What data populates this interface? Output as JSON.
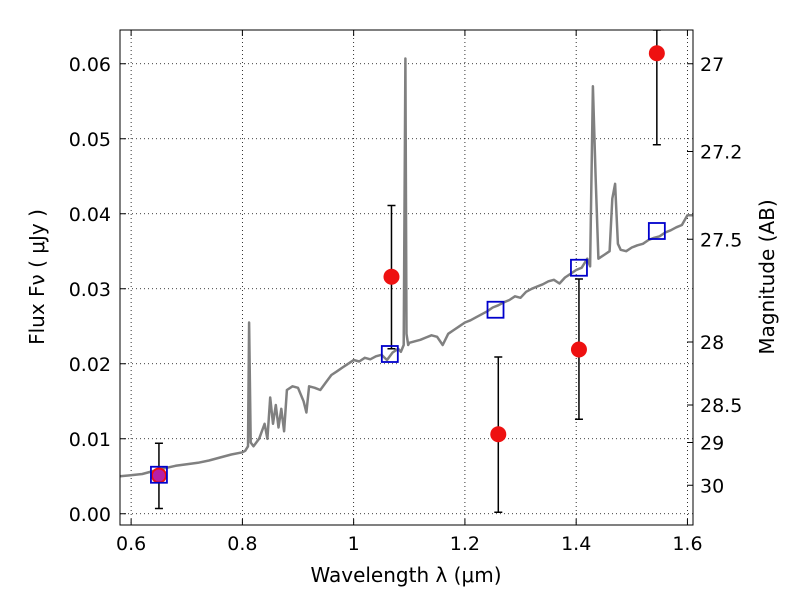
{
  "chart_data": {
    "type": "scatter",
    "title": "",
    "xlabel": "Wavelength  λ (μm)",
    "ylabel": "Flux  Fν  ( μJy )",
    "y2label": "Magnitude (AB)",
    "xlim": [
      0.58,
      1.61
    ],
    "ylim": [
      -0.0015,
      0.0645
    ],
    "grid": true,
    "x_ticks": [
      0.6,
      0.8,
      1.0,
      1.2,
      1.4,
      1.6
    ],
    "x_tick_labels": [
      "0.6",
      "0.8",
      "1",
      "1.2",
      "1.4",
      "1.6"
    ],
    "y_ticks": [
      0.0,
      0.01,
      0.02,
      0.03,
      0.04,
      0.05,
      0.06
    ],
    "y_tick_labels": [
      "0.00",
      "0.01",
      "0.02",
      "0.03",
      "0.04",
      "0.05",
      "0.06"
    ],
    "y2_ticks": [
      {
        "label": "27",
        "flux": 0.06
      },
      {
        "label": "27.2",
        "flux": 0.0483
      },
      {
        "label": "27.5",
        "flux": 0.0366
      },
      {
        "label": "28",
        "flux": 0.0229
      },
      {
        "label": "28.5",
        "flux": 0.0145
      },
      {
        "label": "29",
        "flux": 0.0095
      },
      {
        "label": "30",
        "flux": 0.0038
      }
    ],
    "model_sed": {
      "color": "#808080",
      "x": [
        0.58,
        0.62,
        0.65,
        0.68,
        0.7,
        0.72,
        0.74,
        0.76,
        0.78,
        0.8,
        0.805,
        0.81,
        0.812,
        0.815,
        0.82,
        0.83,
        0.84,
        0.845,
        0.85,
        0.855,
        0.86,
        0.865,
        0.87,
        0.875,
        0.88,
        0.89,
        0.9,
        0.91,
        0.915,
        0.92,
        0.93,
        0.94,
        0.95,
        0.96,
        0.97,
        0.98,
        0.99,
        1.0,
        1.01,
        1.02,
        1.03,
        1.04,
        1.05,
        1.06,
        1.07,
        1.08,
        1.085,
        1.09,
        1.093,
        1.095,
        1.098,
        1.1,
        1.11,
        1.12,
        1.13,
        1.14,
        1.15,
        1.16,
        1.17,
        1.18,
        1.19,
        1.2,
        1.21,
        1.22,
        1.23,
        1.24,
        1.25,
        1.26,
        1.27,
        1.28,
        1.29,
        1.3,
        1.31,
        1.32,
        1.33,
        1.34,
        1.35,
        1.36,
        1.37,
        1.38,
        1.39,
        1.4,
        1.41,
        1.42,
        1.425,
        1.43,
        1.435,
        1.44,
        1.45,
        1.46,
        1.465,
        1.47,
        1.475,
        1.48,
        1.49,
        1.5,
        1.51,
        1.52,
        1.53,
        1.54,
        1.55,
        1.56,
        1.57,
        1.58,
        1.59,
        1.6,
        1.61
      ],
      "y": [
        0.005,
        0.0053,
        0.0059,
        0.0064,
        0.0066,
        0.0068,
        0.0071,
        0.0075,
        0.0079,
        0.0082,
        0.0084,
        0.009,
        0.0255,
        0.0095,
        0.009,
        0.01,
        0.012,
        0.01,
        0.0155,
        0.012,
        0.0145,
        0.0115,
        0.014,
        0.011,
        0.0165,
        0.017,
        0.0168,
        0.015,
        0.0135,
        0.017,
        0.0168,
        0.0165,
        0.0175,
        0.0185,
        0.019,
        0.0195,
        0.02,
        0.0205,
        0.0203,
        0.0208,
        0.0206,
        0.021,
        0.0212,
        0.0205,
        0.0215,
        0.022,
        0.0216,
        0.0225,
        0.0607,
        0.024,
        0.0225,
        0.0228,
        0.023,
        0.0232,
        0.0235,
        0.0238,
        0.0236,
        0.0225,
        0.024,
        0.0245,
        0.025,
        0.0255,
        0.0258,
        0.0262,
        0.0266,
        0.027,
        0.0275,
        0.0278,
        0.0282,
        0.0285,
        0.029,
        0.0288,
        0.0296,
        0.03,
        0.0303,
        0.0306,
        0.031,
        0.0312,
        0.0307,
        0.0315,
        0.032,
        0.0325,
        0.0328,
        0.034,
        0.033,
        0.057,
        0.045,
        0.034,
        0.0345,
        0.035,
        0.042,
        0.044,
        0.036,
        0.0352,
        0.035,
        0.0355,
        0.0358,
        0.036,
        0.0365,
        0.0368,
        0.037,
        0.0375,
        0.0378,
        0.0382,
        0.0385,
        0.0398,
        0.0398
      ]
    },
    "observed": {
      "color": "#ee1111",
      "points": [
        {
          "x": 0.65,
          "y": 0.0051,
          "y_lo": 0.0007,
          "y_hi": 0.0094
        },
        {
          "x": 1.068,
          "y": 0.0316,
          "y_lo": 0.022,
          "y_hi": 0.0411
        },
        {
          "x": 1.26,
          "y": 0.0106,
          "y_lo": 0.0002,
          "y_hi": 0.0209
        },
        {
          "x": 1.405,
          "y": 0.0219,
          "y_lo": 0.0126,
          "y_hi": 0.0313
        },
        {
          "x": 1.545,
          "y": 0.0614,
          "y_lo": 0.0492,
          "y_hi": 0.0645
        }
      ]
    },
    "model_photometry": {
      "color": "#0000cc",
      "points": [
        {
          "x": 0.65,
          "y": 0.0052
        },
        {
          "x": 1.065,
          "y": 0.0213
        },
        {
          "x": 1.255,
          "y": 0.0272
        },
        {
          "x": 1.405,
          "y": 0.0328
        },
        {
          "x": 1.545,
          "y": 0.0377
        }
      ]
    }
  }
}
